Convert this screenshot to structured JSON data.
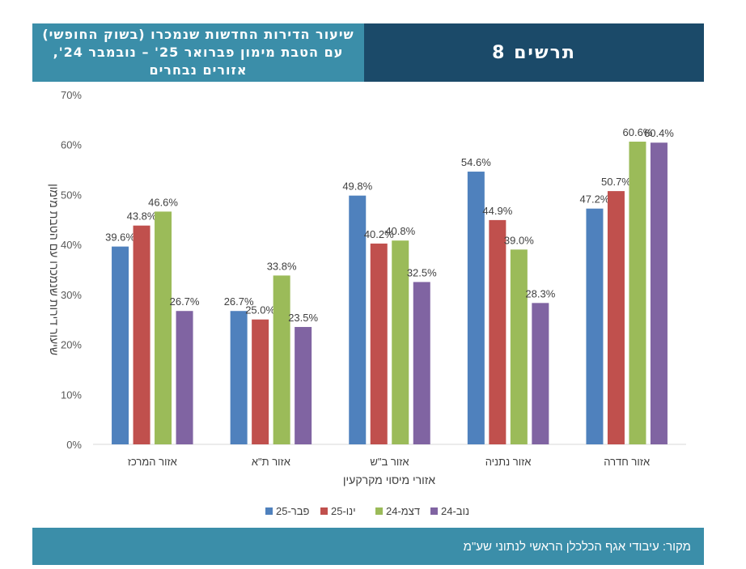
{
  "header": {
    "title": "תרשים 8",
    "subtitle": "שיעור הדירות החדשות שנמכרו (בשוק החופשי) עם הטבת מימון פברואר 25' – נובמבר 24', אזורים נבחרים"
  },
  "chart_data": {
    "type": "bar",
    "title": "שיעור הדירות החדשות שנמכרו (בשוק החופשי) עם הטבת מימון פברואר 25' – נובמבר 24', אזורים נבחרים",
    "xlabel": "אזורי מיסוי מקרקעין",
    "ylabel": "שיעור דירות שנמכרו עם הטבת מימון",
    "ylim": [
      0,
      70
    ],
    "yticks": [
      "0%",
      "10%",
      "20%",
      "30%",
      "40%",
      "50%",
      "60%",
      "70%"
    ],
    "categories": [
      "אזור המרכז",
      "אזור ת\"א",
      "אזור ב\"ש",
      "אזור נתניה",
      "אזור חדרה"
    ],
    "series": [
      {
        "name": "פבר-25",
        "color": "#4f81bd",
        "values": [
          39.6,
          26.7,
          49.8,
          54.6,
          47.2
        ]
      },
      {
        "name": "ינו-25",
        "color": "#c0504d",
        "values": [
          43.8,
          25.0,
          40.2,
          44.9,
          50.7
        ]
      },
      {
        "name": "דצמ-24",
        "color": "#9bbb59",
        "values": [
          46.6,
          33.8,
          40.8,
          39.0,
          60.6
        ]
      },
      {
        "name": "נוב-24",
        "color": "#8064a2",
        "values": [
          26.7,
          23.5,
          32.5,
          28.3,
          60.4
        ]
      }
    ],
    "legend": "bottom",
    "grid": false
  },
  "footer": {
    "source": "מקור: עיבודי אגף הכלכלן הראשי לנתוני שע\"מ"
  }
}
